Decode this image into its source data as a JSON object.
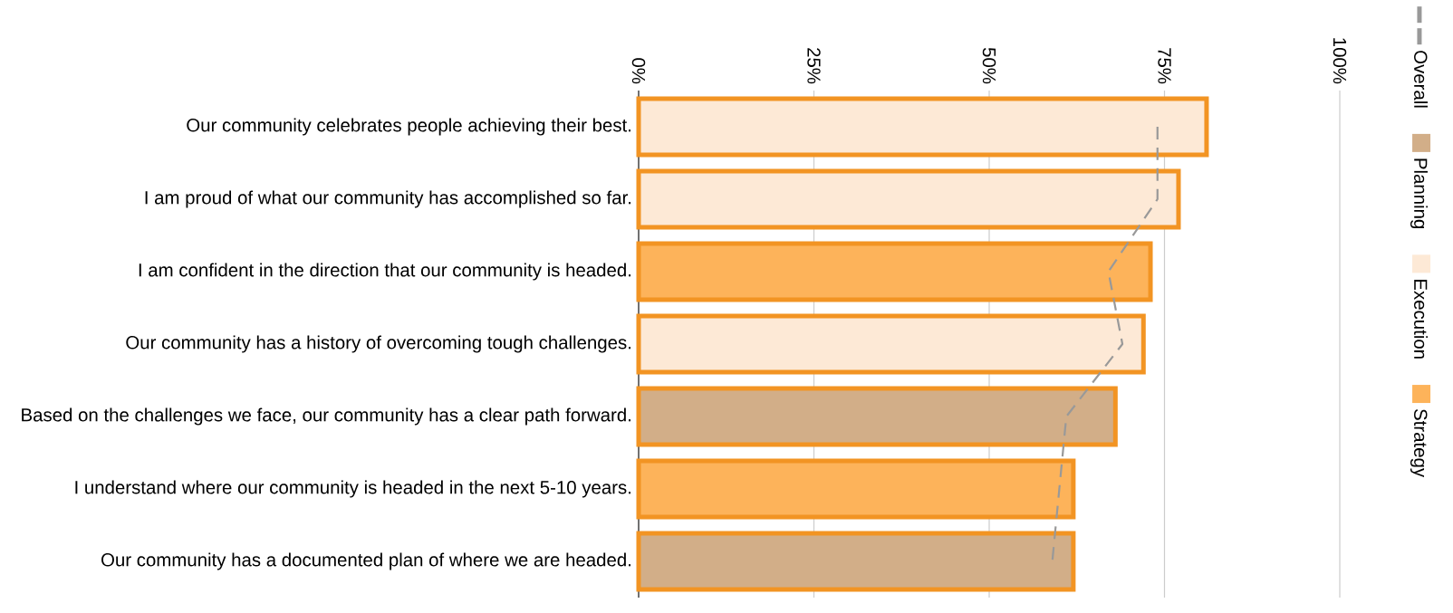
{
  "chart_data": {
    "type": "bar",
    "orientation": "horizontal",
    "categories": [
      "Our community celebrates people achieving their best.",
      "I am proud of what our community has accomplished so far.",
      "I am confident in the direction that our community is headed.",
      "Our community has a history of overcoming tough challenges.",
      "Based on the challenges we face, our community has a clear path forward.",
      "I understand where our community is headed in the next 5-10 years.",
      "Our community has a documented plan of where we are headed."
    ],
    "series": [
      {
        "name": "Overall",
        "type": "line",
        "color": "#999999",
        "line_style": "dashed",
        "values": [
          74,
          74,
          67,
          69,
          61,
          60,
          59
        ]
      },
      {
        "name": "Planning",
        "color": "#d2ae88",
        "values": [
          null,
          null,
          null,
          null,
          68,
          null,
          62
        ]
      },
      {
        "name": "Execution",
        "color": "#fde9d6",
        "values": [
          81,
          77,
          null,
          72,
          null,
          null,
          null
        ]
      },
      {
        "name": "Strategy",
        "color": "#fdb35a",
        "values": [
          null,
          null,
          73,
          null,
          null,
          62,
          null
        ]
      }
    ],
    "xlim": [
      0,
      100
    ],
    "xticks": [
      {
        "value": 0,
        "label": "0%"
      },
      {
        "value": 25,
        "label": "25%"
      },
      {
        "value": 50,
        "label": "50%"
      },
      {
        "value": 75,
        "label": "75%"
      },
      {
        "value": 100,
        "label": "100%"
      }
    ],
    "grid": "x",
    "legend": "right"
  }
}
